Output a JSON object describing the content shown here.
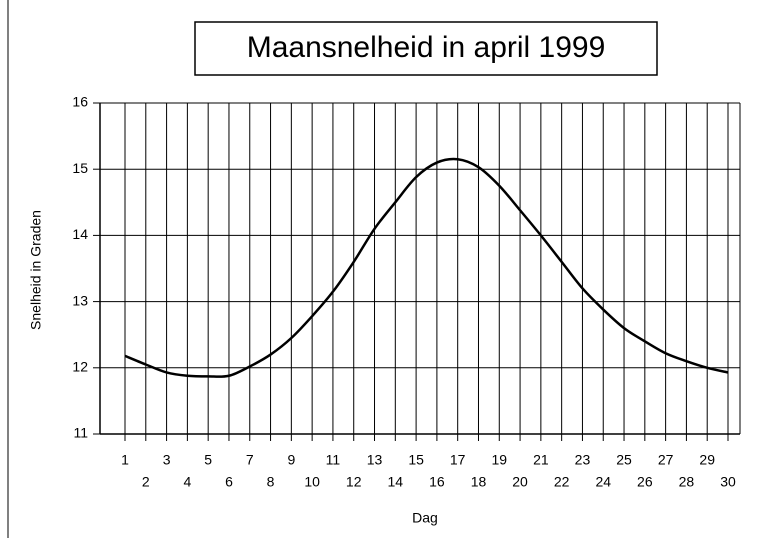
{
  "chart_data": {
    "type": "line",
    "title": "Maansnelheid in april 1999",
    "y_label": "Snelheid in Graden",
    "x_label": "Dag",
    "categories": [
      "1",
      "2",
      "3",
      "4",
      "5",
      "6",
      "7",
      "8",
      "9",
      "10",
      "11",
      "12",
      "13",
      "14",
      "15",
      "16",
      "17",
      "18",
      "19",
      "20",
      "21",
      "22",
      "23",
      "24",
      "25",
      "26",
      "27",
      "28",
      "29",
      "30"
    ],
    "values": [
      12.18,
      12.05,
      11.93,
      11.88,
      11.87,
      11.88,
      12.02,
      12.2,
      12.45,
      12.78,
      13.15,
      13.6,
      14.1,
      14.5,
      14.88,
      15.1,
      15.15,
      15.03,
      14.75,
      14.38,
      14.0,
      13.6,
      13.2,
      12.88,
      12.6,
      12.4,
      12.22,
      12.1,
      12.0,
      11.93
    ],
    "color": "#000000",
    "ylim": [
      11,
      16
    ],
    "yticks": [
      11,
      12,
      13,
      14,
      15,
      16
    ],
    "grid": true
  }
}
